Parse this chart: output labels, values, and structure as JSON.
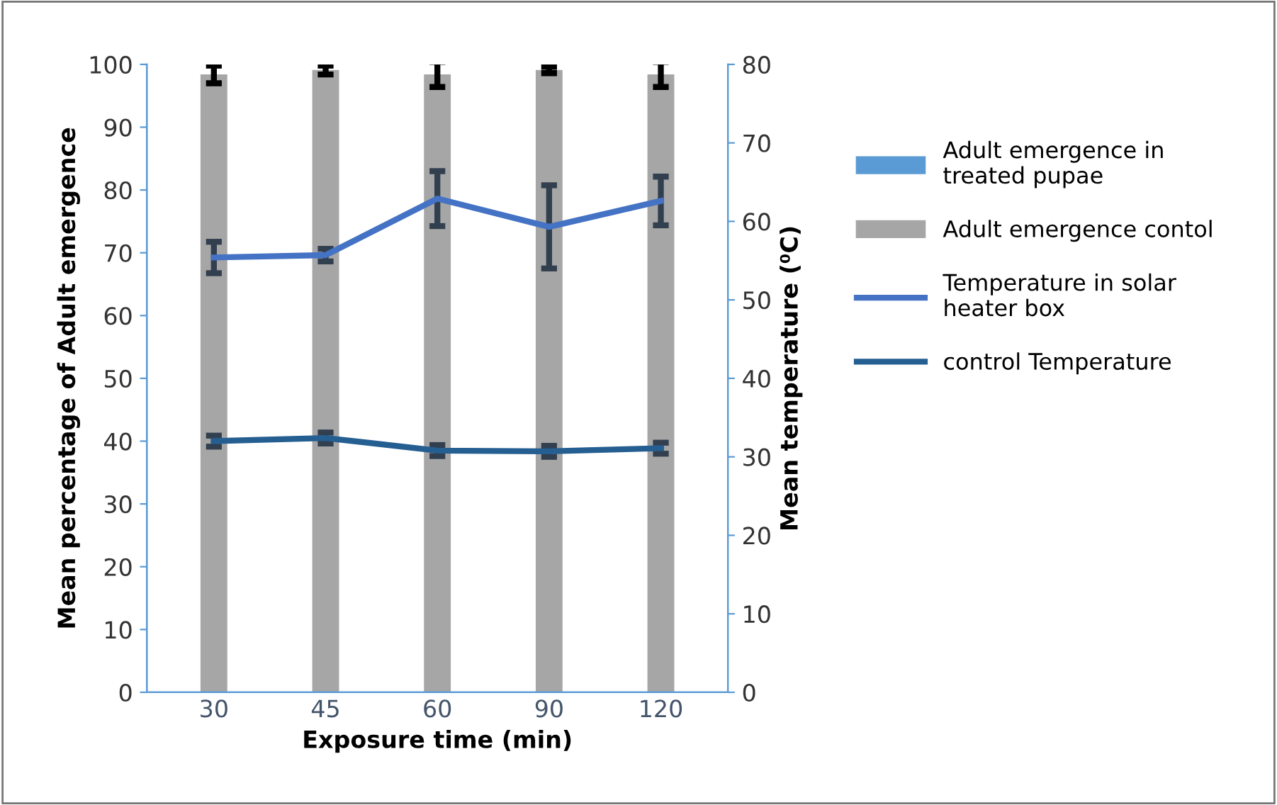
{
  "chart_data": {
    "type": "bar",
    "xlabel": "Exposure time (min)",
    "ylabel": "Mean percentage of Adult emergence",
    "y2label": "Mean temperature (⁰C)",
    "categories": [
      "30",
      "45",
      "60",
      "90",
      "120"
    ],
    "series": [
      {
        "name": "Adult emergence in treated pupae",
        "color": "#5b9bd5",
        "values": [
          0,
          0,
          0,
          0,
          0
        ]
      },
      {
        "name": "Adult emergence contol",
        "color": "#a6a6a6",
        "values": [
          98.4,
          99.1,
          98.4,
          99.1,
          98.4
        ],
        "errors": [
          1.4,
          0.7,
          2,
          0.5,
          2
        ]
      },
      {
        "name": "Temperature in solar heater box",
        "type": "line",
        "axis": "y2",
        "color": "#4472c4",
        "values": [
          55.4,
          55.7,
          62.9,
          59.3,
          62.6
        ],
        "errors": [
          2,
          0.8,
          3.5,
          5.3,
          3.1
        ]
      },
      {
        "name": "control Temperature",
        "type": "line",
        "axis": "y2",
        "color": "#255e91",
        "values": [
          32.0,
          32.4,
          30.8,
          30.7,
          31.1
        ],
        "errors": [
          0.7,
          0.7,
          0.7,
          0.7,
          0.7
        ]
      }
    ],
    "ylim": [
      0,
      100
    ],
    "yticks": [
      0,
      10,
      20,
      30,
      40,
      50,
      60,
      70,
      80,
      90,
      100
    ],
    "y2lim": [
      0,
      80
    ],
    "y2ticks": [
      0,
      10,
      20,
      30,
      40,
      50,
      60,
      70,
      80
    ],
    "grid": false,
    "legend": "right"
  }
}
